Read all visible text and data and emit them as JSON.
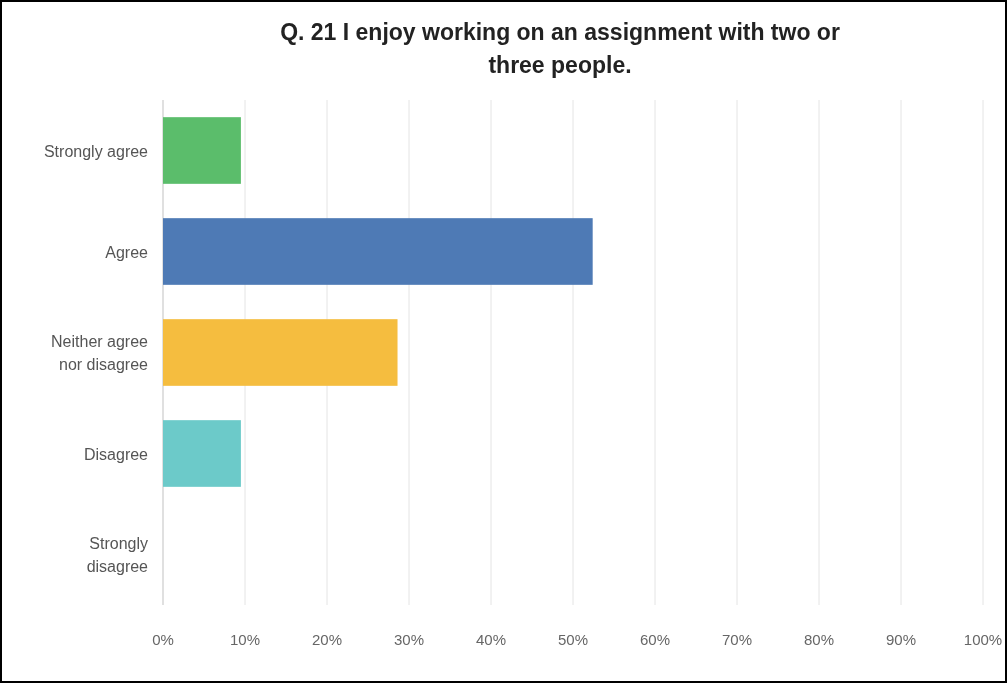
{
  "chart_data": {
    "type": "bar",
    "orientation": "horizontal",
    "title": "Q. 21 I enjoy working on an assignment with two or three people.",
    "categories": [
      "Strongly agree",
      "Agree",
      "Neither agree nor disagree",
      "Disagree",
      "Strongly disagree"
    ],
    "values": [
      9.5,
      52.4,
      28.6,
      9.5,
      0
    ],
    "colors": [
      "#5bbd6b",
      "#4e7ab5",
      "#f5bd3f",
      "#6ccac9",
      "#b0b0b0"
    ],
    "xlim": [
      0,
      100
    ],
    "xticks": [
      {
        "value": 0,
        "label": "0%"
      },
      {
        "value": 10,
        "label": "10%"
      },
      {
        "value": 20,
        "label": "20%"
      },
      {
        "value": 30,
        "label": "30%"
      },
      {
        "value": 40,
        "label": "40%"
      },
      {
        "value": 50,
        "label": "50%"
      },
      {
        "value": 60,
        "label": "60%"
      },
      {
        "value": 70,
        "label": "70%"
      },
      {
        "value": 80,
        "label": "80%"
      },
      {
        "value": 90,
        "label": "90%"
      },
      {
        "value": 100,
        "label": "100%"
      }
    ],
    "grid": "x"
  }
}
